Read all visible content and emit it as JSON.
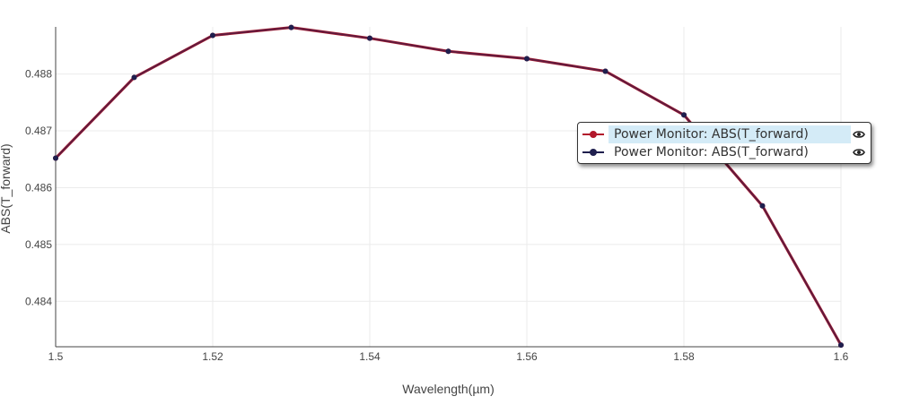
{
  "chart_data": {
    "type": "line",
    "xlabel": "Wavelength(µm)",
    "ylabel": "ABS(T_forward)",
    "xlim": [
      1.5,
      1.6
    ],
    "ylim": [
      0.4832,
      0.48883
    ],
    "x_ticks": [
      "1.5",
      "1.52",
      "1.54",
      "1.56",
      "1.58",
      "1.6"
    ],
    "y_ticks": [
      "0.484",
      "0.485",
      "0.486",
      "0.487",
      "0.488"
    ],
    "grid": true,
    "legend_position": "right",
    "series": [
      {
        "name": "Power Monitor: ABS(T_forward)",
        "color": "#b2182b",
        "x": [
          1.5,
          1.51,
          1.52,
          1.53,
          1.54,
          1.55,
          1.56,
          1.57,
          1.58,
          1.59,
          1.6
        ],
        "y": [
          0.48652,
          0.48794,
          0.48868,
          0.48882,
          0.48863,
          0.4884,
          0.48827,
          0.48805,
          0.48728,
          0.48568,
          0.48323
        ]
      },
      {
        "name": "Power Monitor: ABS(T_forward)",
        "color": "#1f1f4e",
        "x": [
          1.5,
          1.51,
          1.52,
          1.53,
          1.54,
          1.55,
          1.56,
          1.57,
          1.58,
          1.59,
          1.6
        ],
        "y": [
          0.48652,
          0.48794,
          0.48868,
          0.48882,
          0.48863,
          0.4884,
          0.48827,
          0.48805,
          0.48728,
          0.48568,
          0.48323
        ]
      }
    ]
  }
}
